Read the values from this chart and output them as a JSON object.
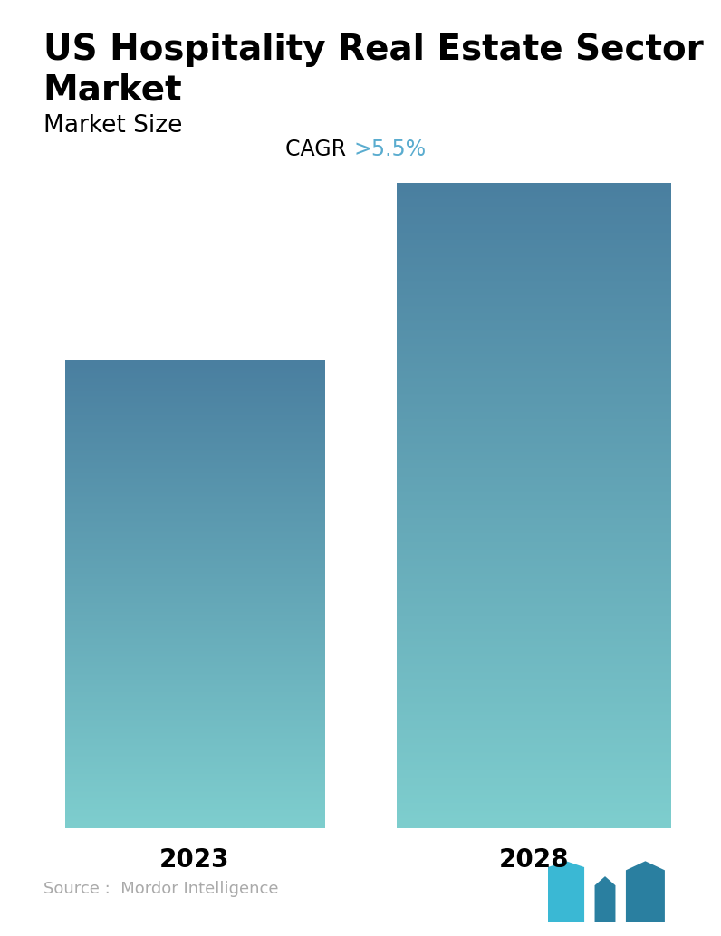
{
  "title_line1": "US Hospitality Real Estate Sector",
  "title_line2": "Market",
  "subtitle": "Market Size",
  "cagr_label": "CAGR ",
  "cagr_value": ">5.5%",
  "categories": [
    "2023",
    "2028"
  ],
  "bar_color_top": "#4a7fa0",
  "bar_color_bottom": "#7ecece",
  "title_fontsize": 28,
  "subtitle_fontsize": 19,
  "cagr_fontsize": 17,
  "cagr_value_color": "#5aaccf",
  "tick_fontsize": 20,
  "source_text": "Source :  Mordor Intelligence",
  "source_color": "#aaaaaa",
  "background_color": "#ffffff"
}
